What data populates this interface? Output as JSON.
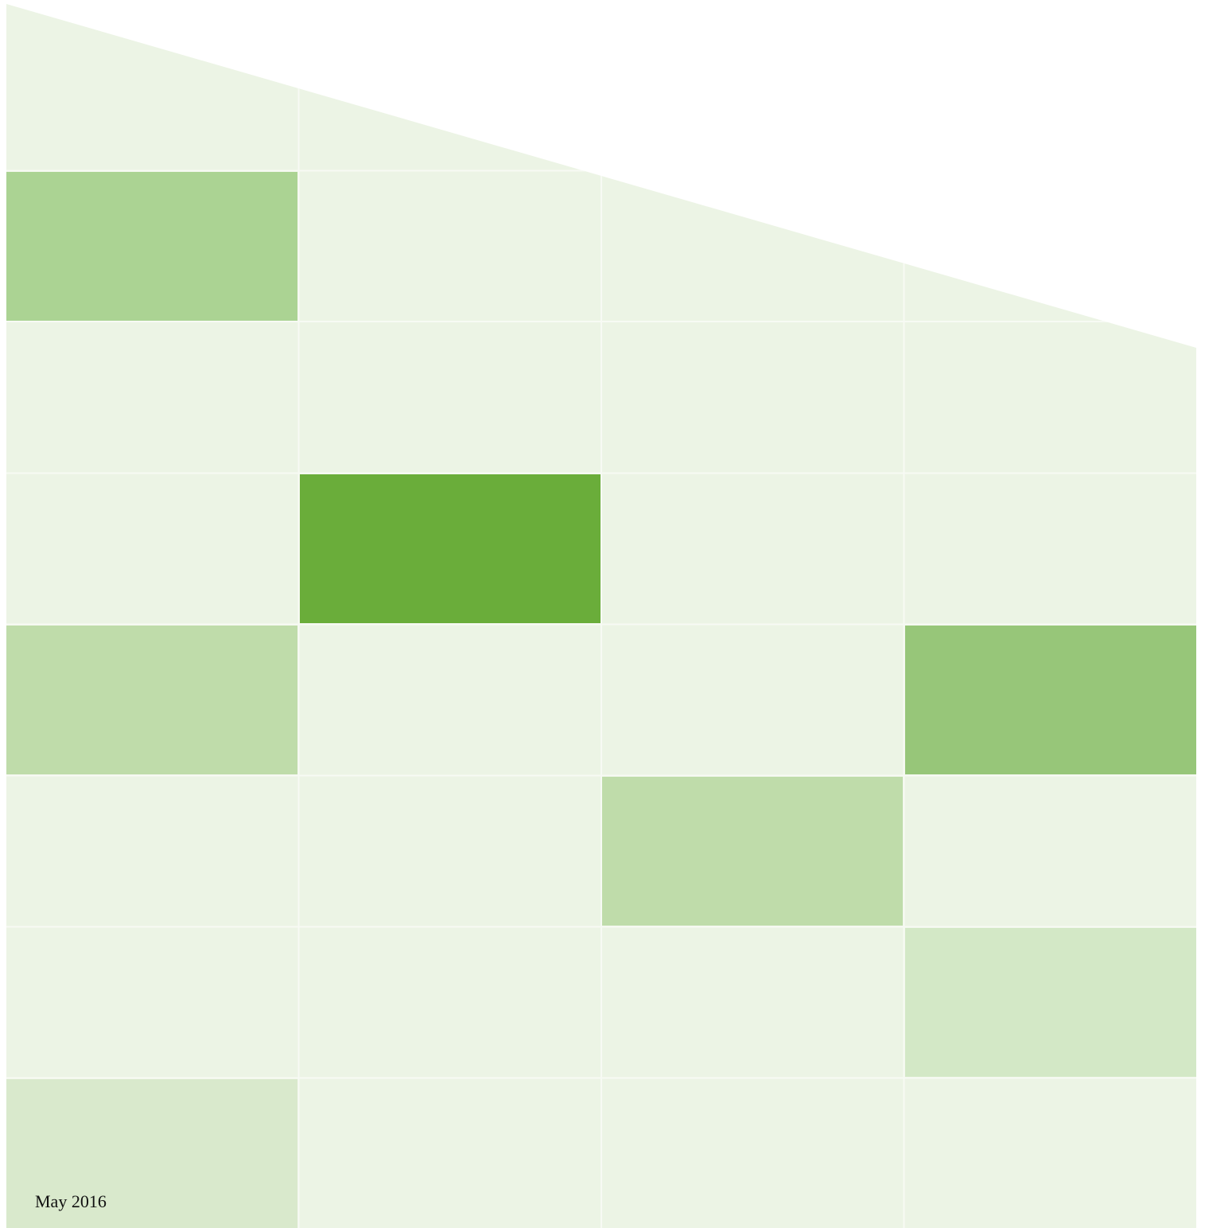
{
  "date": "May 2016"
}
